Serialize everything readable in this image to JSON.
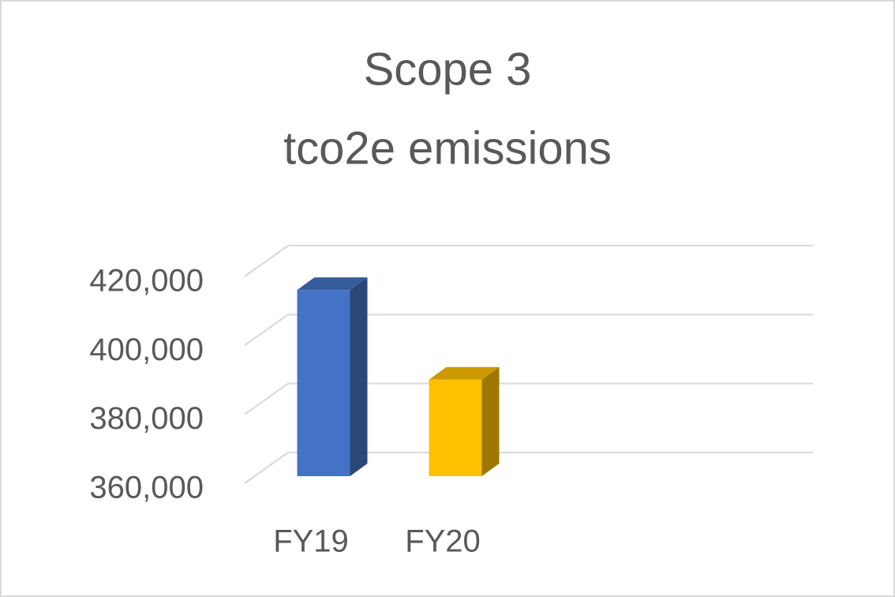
{
  "chart_data": {
    "type": "bar3d",
    "title": [
      "Scope 3",
      "tco2e emissions"
    ],
    "categories": [
      "FY19",
      "FY20"
    ],
    "values": [
      414000,
      388000
    ],
    "colors": [
      "#4472c4",
      "#ffc000"
    ],
    "ylim": [
      360000,
      420000
    ],
    "yticks": [
      {
        "value": 360000,
        "label": "360,000"
      },
      {
        "value": 380000,
        "label": "380,000"
      },
      {
        "value": 400000,
        "label": "400,000"
      },
      {
        "value": 420000,
        "label": "420,000"
      }
    ],
    "grid": true
  }
}
